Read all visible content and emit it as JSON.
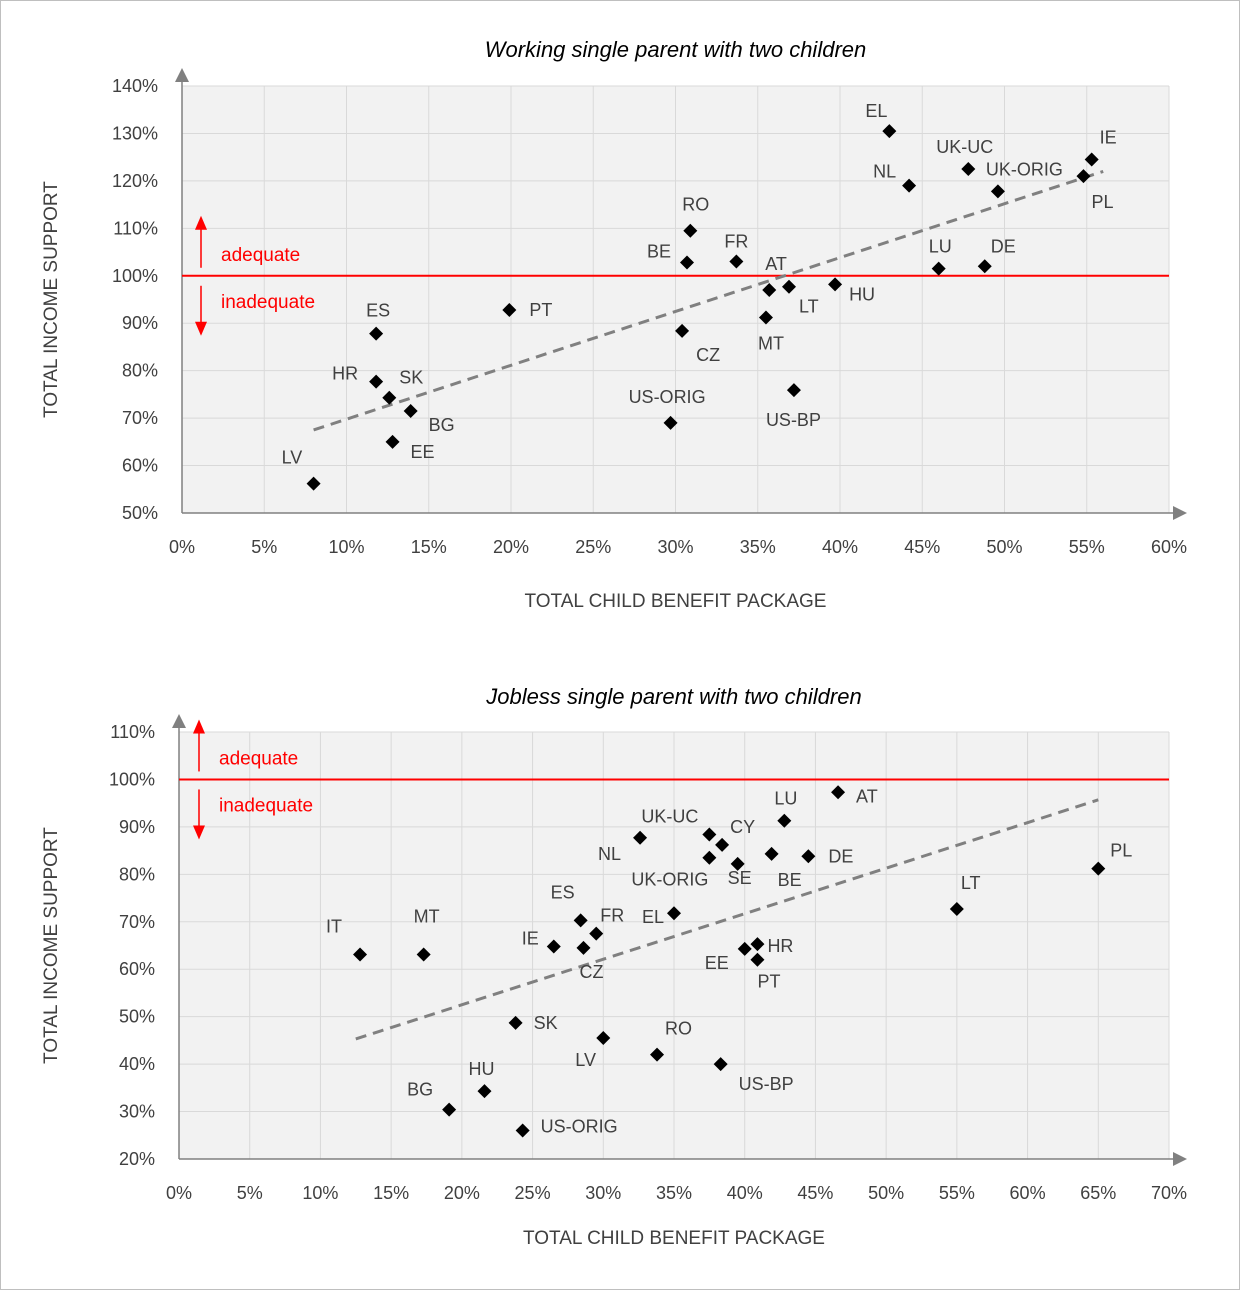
{
  "colors": {
    "grid": "#d9d9d9",
    "plot_bg": "#f2f2f2",
    "axis": "#808080",
    "threshold": "#ff0000",
    "marker": "#000000",
    "trend": "#808080",
    "text": "#404040"
  },
  "chart_data": [
    {
      "type": "scatter",
      "title": "Working single parent with two children",
      "xlabel": "TOTAL CHILD BENEFIT PACKAGE",
      "ylabel": "TOTAL INCOME SUPPORT",
      "xlim": [
        0,
        60
      ],
      "ylim": [
        50,
        140
      ],
      "xticks": [
        "0%",
        "5%",
        "10%",
        "15%",
        "20%",
        "25%",
        "30%",
        "35%",
        "40%",
        "45%",
        "50%",
        "55%",
        "60%"
      ],
      "yticks": [
        "50%",
        "60%",
        "70%",
        "80%",
        "90%",
        "100%",
        "110%",
        "120%",
        "130%",
        "140%"
      ],
      "grid": true,
      "threshold": {
        "y": 100,
        "above_label": "adequate",
        "below_label": "inadequate"
      },
      "trendline": {
        "x": [
          8,
          56
        ],
        "y": [
          67.5,
          122
        ]
      },
      "points": [
        {
          "label": "EL",
          "x": 43.0,
          "y": 130.5
        },
        {
          "label": "IE",
          "x": 55.3,
          "y": 124.5
        },
        {
          "label": "UK-UC",
          "x": 47.8,
          "y": 122.5
        },
        {
          "label": "PL",
          "x": 54.8,
          "y": 121.0
        },
        {
          "label": "NL",
          "x": 44.2,
          "y": 119.0
        },
        {
          "label": "UK-ORIG",
          "x": 49.6,
          "y": 117.8
        },
        {
          "label": "RO",
          "x": 30.9,
          "y": 109.5
        },
        {
          "label": "FR",
          "x": 33.7,
          "y": 103.0
        },
        {
          "label": "BE",
          "x": 30.7,
          "y": 102.8
        },
        {
          "label": "DE",
          "x": 48.8,
          "y": 102.0
        },
        {
          "label": "LU",
          "x": 46.0,
          "y": 101.5
        },
        {
          "label": "HU",
          "x": 39.7,
          "y": 98.2
        },
        {
          "label": "LT",
          "x": 36.9,
          "y": 97.7
        },
        {
          "label": "AT",
          "x": 35.7,
          "y": 97.0
        },
        {
          "label": "PT",
          "x": 19.9,
          "y": 92.8
        },
        {
          "label": "MT",
          "x": 35.5,
          "y": 91.2
        },
        {
          "label": "CZ",
          "x": 30.4,
          "y": 88.4
        },
        {
          "label": "ES",
          "x": 11.8,
          "y": 87.8
        },
        {
          "label": "HR",
          "x": 11.8,
          "y": 77.7
        },
        {
          "label": "US-BP",
          "x": 37.2,
          "y": 75.9
        },
        {
          "label": "SK",
          "x": 12.6,
          "y": 74.3
        },
        {
          "label": "BG",
          "x": 13.9,
          "y": 71.5
        },
        {
          "label": "US-ORIG",
          "x": 29.7,
          "y": 69.0
        },
        {
          "label": "EE",
          "x": 12.8,
          "y": 65.0
        },
        {
          "label": "LV",
          "x": 8.0,
          "y": 56.2
        }
      ]
    },
    {
      "type": "scatter",
      "title": "Jobless single parent with two children",
      "xlabel": "TOTAL CHILD BENEFIT PACKAGE",
      "ylabel": "TOTAL INCOME SUPPORT",
      "xlim": [
        0,
        70
      ],
      "ylim": [
        20,
        110
      ],
      "xticks": [
        "0%",
        "5%",
        "10%",
        "15%",
        "20%",
        "25%",
        "30%",
        "35%",
        "40%",
        "45%",
        "50%",
        "55%",
        "60%",
        "65%",
        "70%"
      ],
      "yticks": [
        "20%",
        "30%",
        "40%",
        "50%",
        "60%",
        "70%",
        "80%",
        "90%",
        "100%",
        "110%"
      ],
      "grid": true,
      "threshold": {
        "y": 100,
        "above_label": "adequate",
        "below_label": "inadequate"
      },
      "trendline": {
        "x": [
          12.5,
          65
        ],
        "y": [
          45.3,
          95.7
        ]
      },
      "points": [
        {
          "label": "AT",
          "x": 46.6,
          "y": 97.3
        },
        {
          "label": "LU",
          "x": 42.8,
          "y": 91.3
        },
        {
          "label": "UK-UC",
          "x": 37.5,
          "y": 88.4
        },
        {
          "label": "NL",
          "x": 32.6,
          "y": 87.7
        },
        {
          "label": "CY",
          "x": 38.4,
          "y": 86.2
        },
        {
          "label": "BE",
          "x": 41.9,
          "y": 84.3
        },
        {
          "label": "DE",
          "x": 44.5,
          "y": 83.8
        },
        {
          "label": "UK-ORIG",
          "x": 37.5,
          "y": 83.5
        },
        {
          "label": "SE",
          "x": 39.5,
          "y": 82.2
        },
        {
          "label": "PL",
          "x": 65.0,
          "y": 81.2
        },
        {
          "label": "LT",
          "x": 55.0,
          "y": 72.7
        },
        {
          "label": "EL",
          "x": 35.0,
          "y": 71.8
        },
        {
          "label": "ES",
          "x": 28.4,
          "y": 70.3
        },
        {
          "label": "FR",
          "x": 29.5,
          "y": 67.5
        },
        {
          "label": "HR",
          "x": 40.9,
          "y": 65.3
        },
        {
          "label": "IE",
          "x": 26.5,
          "y": 64.8
        },
        {
          "label": "CZ",
          "x": 28.6,
          "y": 64.5
        },
        {
          "label": "EE",
          "x": 40.0,
          "y": 64.3
        },
        {
          "label": "IT",
          "x": 12.8,
          "y": 63.1
        },
        {
          "label": "MT",
          "x": 17.3,
          "y": 63.1
        },
        {
          "label": "PT",
          "x": 40.9,
          "y": 62.0
        },
        {
          "label": "SK",
          "x": 23.8,
          "y": 48.7
        },
        {
          "label": "LV",
          "x": 30.0,
          "y": 45.5
        },
        {
          "label": "RO",
          "x": 33.8,
          "y": 42.0
        },
        {
          "label": "US-BP",
          "x": 38.3,
          "y": 40.0
        },
        {
          "label": "HU",
          "x": 21.6,
          "y": 34.3
        },
        {
          "label": "BG",
          "x": 19.1,
          "y": 30.4
        },
        {
          "label": "US-ORIG",
          "x": 24.3,
          "y": 26.0
        }
      ]
    }
  ]
}
